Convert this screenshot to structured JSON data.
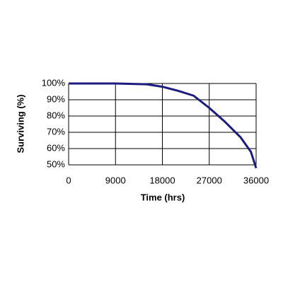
{
  "chart_data": {
    "type": "line",
    "x_label": "Time (hrs)",
    "y_label": "Surviving (%)",
    "x": [
      0,
      9000,
      15000,
      18000,
      21000,
      24000,
      27000,
      30000,
      33000,
      35000,
      36000
    ],
    "series": [
      {
        "name": "Surviving",
        "color": "#1c1c7e",
        "values": [
          100,
          100,
          99.5,
          98,
          95.5,
          92.5,
          85,
          76.5,
          67,
          58,
          48
        ]
      }
    ],
    "xlim": [
      0,
      36000
    ],
    "xticks": [
      0,
      9000,
      18000,
      27000,
      36000
    ],
    "ylim": [
      50,
      100
    ],
    "yticks": [
      {
        "value": 50,
        "label": "50%"
      },
      {
        "value": 60,
        "label": "60%"
      },
      {
        "value": 70,
        "label": "70%"
      },
      {
        "value": 80,
        "label": "80%"
      },
      {
        "value": 90,
        "label": "90%"
      },
      {
        "value": 100,
        "label": "100%"
      }
    ],
    "grid": true
  }
}
